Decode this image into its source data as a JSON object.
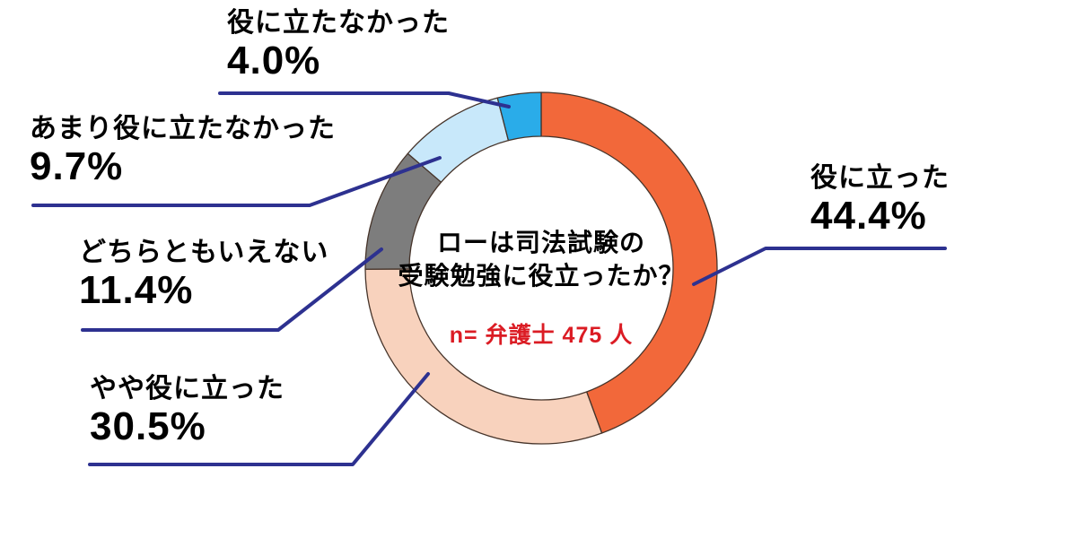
{
  "chart_data": {
    "type": "pie",
    "subtype": "donut",
    "title": "ローは司法試験の受験勉強に役立ったか？",
    "center_title_lines": [
      "ローは司法試験の",
      "受験勉強に役立ったか？"
    ],
    "sample_label": "n= 弁護士 475 人",
    "sample_label_color": "#db1c24",
    "categories": [
      "役に立った",
      "やや役に立った",
      "どちらともいえない",
      "あまり役に立たなかった",
      "役に立たなかった"
    ],
    "values": [
      44.4,
      30.5,
      11.4,
      9.7,
      4.0
    ],
    "segments": [
      {
        "label": "役に立った",
        "value": 44.4,
        "display": "44.4%",
        "color": "#f2683a"
      },
      {
        "label": "やや役に立った",
        "value": 30.5,
        "display": "30.5%",
        "color": "#f8d2bd"
      },
      {
        "label": "どちらともいえない",
        "value": 11.4,
        "display": "11.4%",
        "color": "#7d7d7d"
      },
      {
        "label": "あまり役に立たなかった",
        "value": 9.7,
        "display": "9.7%",
        "color": "#c8e8fa"
      },
      {
        "label": "役に立たなかった",
        "value": 4.0,
        "display": "4.0%",
        "color": "#2aace9"
      }
    ],
    "start_angle_deg": 0,
    "direction": "clockwise",
    "outline_color": "#46342a",
    "leader_line_color": "#2d3190",
    "legend_position": "none",
    "labels_position": "outside-with-leader-lines",
    "background_color": "#ffffff"
  }
}
